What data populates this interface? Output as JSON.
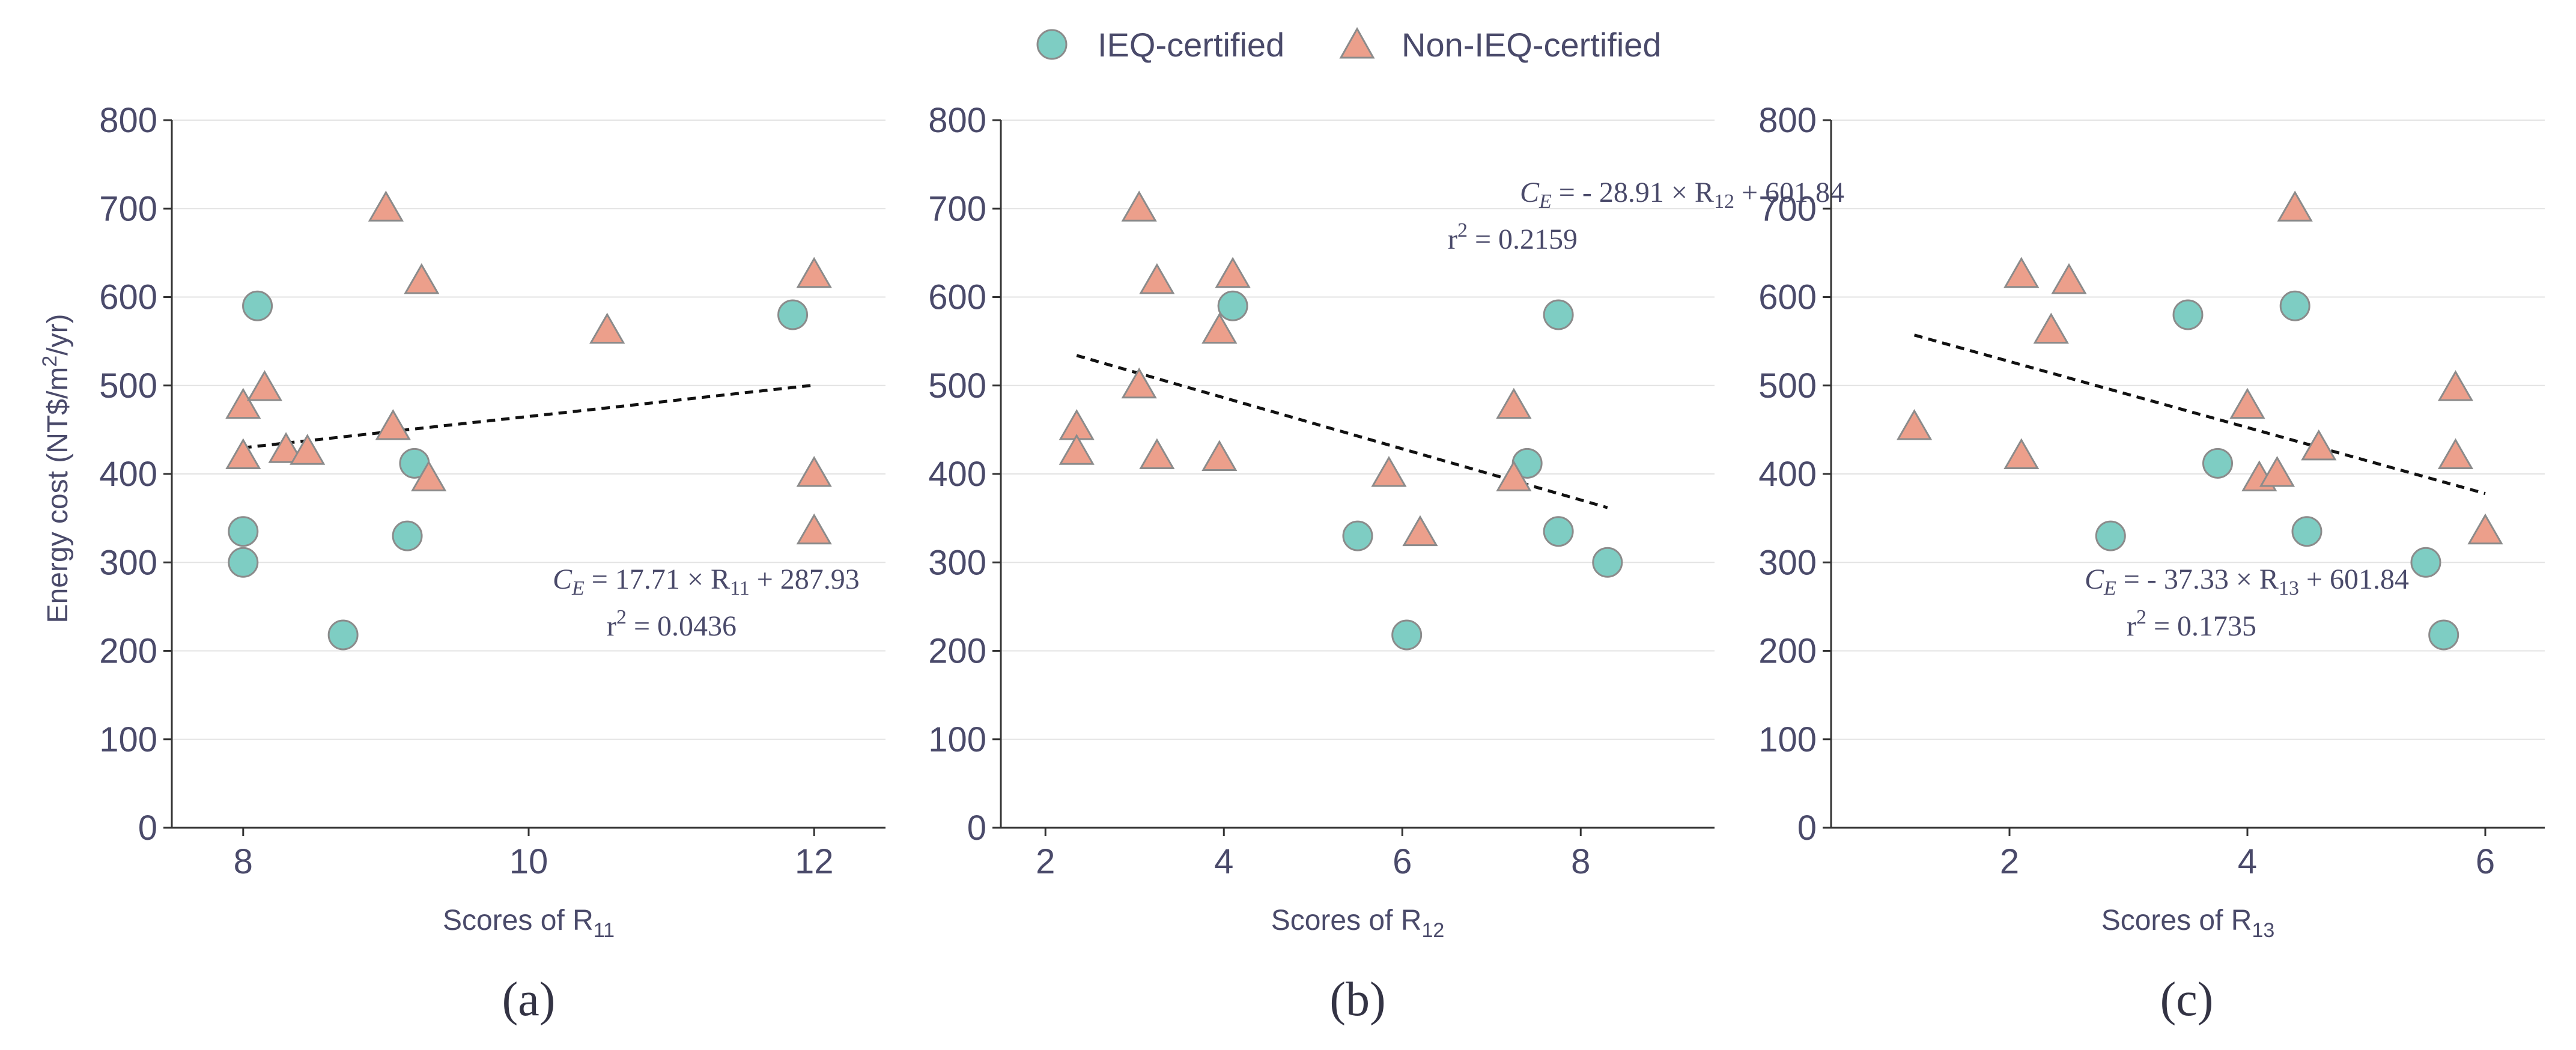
{
  "legend": {
    "items": [
      {
        "label": "IEQ-certified",
        "shape": "circle",
        "color": "#7ecdc3"
      },
      {
        "label": "Non-IEQ-certified",
        "shape": "triangle",
        "color": "#ec9f8b"
      }
    ]
  },
  "y_axis": {
    "label_main": "Energy cost (NT$/m",
    "label_sup": "2",
    "label_end": "/yr)"
  },
  "chart_data": [
    {
      "type": "scatter",
      "panel_label": "(a)",
      "xlabel_main": "Scores of R",
      "xlabel_sub": "11",
      "ylabel": "Energy cost (NT$/m2/yr)",
      "xlim": [
        7.5,
        12.5
      ],
      "ylim": [
        0,
        800
      ],
      "xticks": [
        8,
        10,
        12
      ],
      "yticks": [
        0,
        100,
        200,
        300,
        400,
        500,
        600,
        700,
        800
      ],
      "grid": "horizontal",
      "series": [
        {
          "name": "IEQ-certified",
          "points": [
            [
              8.1,
              590
            ],
            [
              8.0,
              335
            ],
            [
              8.0,
              300
            ],
            [
              8.7,
              218
            ],
            [
              9.15,
              330
            ],
            [
              9.2,
              412
            ],
            [
              11.85,
              580
            ]
          ]
        },
        {
          "name": "Non-IEQ-certified",
          "points": [
            [
              8.0,
              477
            ],
            [
              8.0,
              420
            ],
            [
              8.15,
              497
            ],
            [
              8.3,
              427
            ],
            [
              8.45,
              425
            ],
            [
              9.0,
              700
            ],
            [
              9.05,
              453
            ],
            [
              9.25,
              618
            ],
            [
              9.3,
              395
            ],
            [
              10.55,
              562
            ],
            [
              12.0,
              625
            ],
            [
              12.0,
              400
            ],
            [
              12.0,
              335
            ]
          ]
        }
      ],
      "trendline": {
        "x": [
          8.0,
          12.0
        ],
        "y": [
          429.6,
          500.4
        ]
      },
      "equation": {
        "lhs": "C",
        "lhs_sub": "E",
        "sign": "",
        "coef": "17.71 × R",
        "var_sub": "11",
        "tail": "+  287.93"
      },
      "r2": {
        "prefix": "r",
        "exp": "2",
        "value": "= 0.0436"
      }
    },
    {
      "type": "scatter",
      "panel_label": "(b)",
      "xlabel_main": "Scores of R",
      "xlabel_sub": "12",
      "ylabel": "Energy cost (NT$/m2/yr)",
      "xlim": [
        1.5,
        9.5
      ],
      "ylim": [
        0,
        800
      ],
      "xticks": [
        2,
        4,
        6,
        8
      ],
      "yticks": [
        0,
        100,
        200,
        300,
        400,
        500,
        600,
        700,
        800
      ],
      "grid": "horizontal",
      "series": [
        {
          "name": "IEQ-certified",
          "points": [
            [
              4.1,
              590
            ],
            [
              5.5,
              330
            ],
            [
              6.05,
              218
            ],
            [
              7.4,
              412
            ],
            [
              7.75,
              580
            ],
            [
              7.75,
              335
            ],
            [
              8.3,
              300
            ]
          ]
        },
        {
          "name": "Non-IEQ-certified",
          "points": [
            [
              2.35,
              453
            ],
            [
              2.35,
              425
            ],
            [
              3.05,
              700
            ],
            [
              3.05,
              500
            ],
            [
              3.25,
              618
            ],
            [
              3.25,
              420
            ],
            [
              3.95,
              562
            ],
            [
              3.95,
              418
            ],
            [
              4.1,
              625
            ],
            [
              5.85,
              400
            ],
            [
              6.2,
              333
            ],
            [
              7.25,
              477
            ],
            [
              7.25,
              395
            ]
          ]
        }
      ],
      "trendline": {
        "x": [
          2.35,
          8.3
        ],
        "y": [
          533.9,
          361.9
        ]
      },
      "equation": {
        "lhs": "C",
        "lhs_sub": "E",
        "sign": "-",
        "coef": "28.91 × R",
        "var_sub": "12",
        "tail": "+  601.84"
      },
      "r2": {
        "prefix": "r",
        "exp": "2",
        "value": "= 0.2159"
      }
    },
    {
      "type": "scatter",
      "panel_label": "(c)",
      "xlabel_main": "Scores of R",
      "xlabel_sub": "13",
      "ylabel": "Energy cost (NT$/m2/yr)",
      "xlim": [
        0.5,
        6.5
      ],
      "ylim": [
        0,
        800
      ],
      "xticks": [
        2,
        4,
        6
      ],
      "yticks": [
        0,
        100,
        200,
        300,
        400,
        500,
        600,
        700,
        800
      ],
      "grid": "horizontal",
      "series": [
        {
          "name": "IEQ-certified",
          "points": [
            [
              2.85,
              330
            ],
            [
              3.5,
              580
            ],
            [
              3.75,
              412
            ],
            [
              4.4,
              590
            ],
            [
              4.5,
              335
            ],
            [
              5.5,
              300
            ],
            [
              5.65,
              218
            ]
          ]
        },
        {
          "name": "Non-IEQ-certified",
          "points": [
            [
              1.2,
              453
            ],
            [
              2.1,
              625
            ],
            [
              2.1,
              420
            ],
            [
              2.35,
              562
            ],
            [
              2.5,
              618
            ],
            [
              4.0,
              477
            ],
            [
              4.1,
              395
            ],
            [
              4.25,
              400
            ],
            [
              4.4,
              700
            ],
            [
              4.6,
              430
            ],
            [
              5.75,
              497
            ],
            [
              5.75,
              420
            ],
            [
              6.0,
              335
            ]
          ]
        }
      ],
      "trendline": {
        "x": [
          1.2,
          6.0
        ],
        "y": [
          557.0,
          377.8
        ]
      },
      "equation": {
        "lhs": "C",
        "lhs_sub": "E",
        "sign": "-",
        "coef": "37.33 × R",
        "var_sub": "13",
        "tail": "+ 601.84"
      },
      "r2": {
        "prefix": "r",
        "exp": "2",
        "value": "= 0.1735"
      }
    }
  ]
}
